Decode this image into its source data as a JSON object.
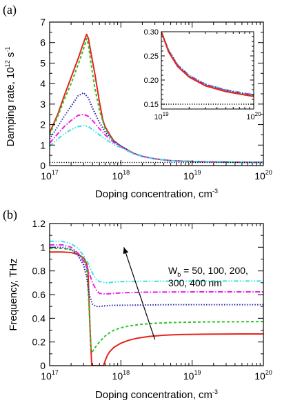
{
  "colors": {
    "wb50": "#e8221b",
    "wb100": "#29c42a",
    "wb200": "#1f1fb3",
    "wb300": "#e81ee8",
    "wb400": "#2ee3e3",
    "reference": "#000000",
    "axis": "#000000"
  },
  "chart_data": [
    {
      "panel_label": "(a)",
      "type": "line",
      "x_scale": "log",
      "xlabel": "Doping concentration, cm",
      "xlabel_exp": "-3",
      "ylabel": "Damping rate, 10",
      "ylabel_exp1": "12",
      "ylabel_unit": " s",
      "ylabel_exp2": "-1",
      "xlim": [
        1e+17,
        1e+20
      ],
      "ylim": [
        0,
        7
      ],
      "y_ticks": [
        "0",
        "1",
        "2",
        "3",
        "4",
        "5",
        "6",
        "7"
      ],
      "x_ticks": [
        {
          "base": "10",
          "exp": "17"
        },
        {
          "base": "10",
          "exp": "18"
        },
        {
          "base": "10",
          "exp": "19"
        },
        {
          "base": "10",
          "exp": "20"
        }
      ],
      "series": [
        {
          "key": "wb50",
          "style": "solid",
          "x": [
            1e+17,
            1.3e+17,
            1.6e+17,
            2e+17,
            2.5e+17,
            3e+17,
            3.3e+17,
            3.5e+17,
            3.8e+17,
            4.3e+17,
            5e+17,
            5.6e+17,
            6e+17,
            7e+17,
            8e+17,
            1e+18,
            1.5e+18,
            2e+18,
            3e+18,
            5e+18,
            1e+19,
            2e+19,
            5e+19,
            1e+20
          ],
          "y": [
            1.6,
            2.5,
            3.4,
            4.3,
            5.2,
            6.0,
            6.4,
            6.2,
            5.5,
            4.5,
            3.1,
            2.2,
            1.9,
            1.5,
            1.2,
            0.95,
            0.6,
            0.45,
            0.33,
            0.24,
            0.2,
            0.18,
            0.165,
            0.16
          ]
        },
        {
          "key": "wb100",
          "style": "dashed",
          "x": [
            1e+17,
            1.3e+17,
            1.6e+17,
            2e+17,
            2.5e+17,
            3e+17,
            3.3e+17,
            3.5e+17,
            3.8e+17,
            4.3e+17,
            5e+17,
            6e+17,
            7e+17,
            8e+17,
            1e+18,
            1.5e+18,
            2e+18,
            3e+18,
            5e+18,
            1e+19,
            2e+19,
            5e+19,
            1e+20
          ],
          "y": [
            1.5,
            2.4,
            3.2,
            4.0,
            4.9,
            5.7,
            6.2,
            5.9,
            5.0,
            3.8,
            2.7,
            1.8,
            1.45,
            1.2,
            0.95,
            0.6,
            0.45,
            0.33,
            0.24,
            0.2,
            0.18,
            0.165,
            0.16
          ]
        },
        {
          "key": "wb200",
          "style": "dotted",
          "x": [
            1e+17,
            1.3e+17,
            1.6e+17,
            2e+17,
            2.5e+17,
            3e+17,
            3.5e+17,
            4e+17,
            5e+17,
            6e+17,
            7e+17,
            8e+17,
            1e+18,
            1.5e+18,
            2e+18,
            3e+18,
            5e+18,
            1e+19,
            2e+19,
            5e+19,
            1e+20
          ],
          "y": [
            1.3,
            1.9,
            2.4,
            2.9,
            3.4,
            3.55,
            3.3,
            2.8,
            2.1,
            1.65,
            1.4,
            1.18,
            0.95,
            0.6,
            0.45,
            0.33,
            0.24,
            0.2,
            0.18,
            0.165,
            0.16
          ]
        },
        {
          "key": "wb300",
          "style": "dashdot",
          "x": [
            1e+17,
            1.3e+17,
            1.6e+17,
            2e+17,
            2.5e+17,
            3e+17,
            3.5e+17,
            4e+17,
            5e+17,
            6e+17,
            7e+17,
            8e+17,
            1e+18,
            1.5e+18,
            2e+18,
            3e+18,
            5e+18,
            1e+19,
            2e+19,
            5e+19,
            1e+20
          ],
          "y": [
            1.1,
            1.55,
            1.9,
            2.2,
            2.45,
            2.5,
            2.4,
            2.2,
            1.8,
            1.5,
            1.3,
            1.12,
            0.92,
            0.6,
            0.45,
            0.33,
            0.24,
            0.2,
            0.18,
            0.165,
            0.16
          ]
        },
        {
          "key": "wb400",
          "style": "dashdot2",
          "x": [
            1e+17,
            1.3e+17,
            1.6e+17,
            2e+17,
            2.5e+17,
            3e+17,
            3.5e+17,
            4e+17,
            5e+17,
            6e+17,
            7e+17,
            8e+17,
            1e+18,
            1.5e+18,
            2e+18,
            3e+18,
            5e+18,
            1e+19,
            2e+19,
            5e+19,
            1e+20
          ],
          "y": [
            0.95,
            1.3,
            1.55,
            1.75,
            1.9,
            1.95,
            1.9,
            1.75,
            1.5,
            1.3,
            1.15,
            1.02,
            0.88,
            0.58,
            0.44,
            0.33,
            0.24,
            0.2,
            0.18,
            0.165,
            0.16
          ]
        },
        {
          "key": "reference",
          "style": "fine-dotted",
          "x": [
            1e+17,
            1e+20
          ],
          "y": [
            0.15,
            0.15
          ]
        }
      ],
      "inset": {
        "xlim": [
          1e+19,
          1e+20
        ],
        "ylim": [
          0.14,
          0.3
        ],
        "y_ticks": [
          "0.15",
          "0.20",
          "0.25",
          "0.30"
        ],
        "x_ticks": [
          {
            "base": "10",
            "exp": "19"
          },
          {
            "base": "10",
            "exp": "20"
          }
        ],
        "series": [
          {
            "key": "wb400",
            "style": "dashdot2",
            "x": [
              1e+19,
              1.2e+19,
              1.5e+19,
              2e+19,
              3e+19,
              5e+19,
              7e+19,
              1e+20
            ],
            "y": [
              0.3,
              0.262,
              0.232,
              0.21,
              0.192,
              0.18,
              0.175,
              0.17
            ]
          },
          {
            "key": "wb300",
            "style": "dashdot",
            "x": [
              1e+19,
              1.2e+19,
              1.5e+19,
              2e+19,
              3e+19,
              5e+19,
              7e+19,
              1e+20
            ],
            "y": [
              0.3,
              0.261,
              0.231,
              0.209,
              0.191,
              0.179,
              0.174,
              0.169
            ]
          },
          {
            "key": "wb200",
            "style": "dotted",
            "x": [
              1e+19,
              1.2e+19,
              1.5e+19,
              2e+19,
              3e+19,
              5e+19,
              7e+19,
              1e+20
            ],
            "y": [
              0.3,
              0.26,
              0.23,
              0.208,
              0.19,
              0.178,
              0.173,
              0.168
            ]
          },
          {
            "key": "wb100",
            "style": "dashed",
            "x": [
              1e+19,
              1.2e+19,
              1.5e+19,
              2e+19,
              3e+19,
              5e+19,
              7e+19,
              1e+20
            ],
            "y": [
              0.3,
              0.259,
              0.229,
              0.207,
              0.189,
              0.177,
              0.172,
              0.167
            ]
          },
          {
            "key": "wb50",
            "style": "solid",
            "x": [
              1e+19,
              1.2e+19,
              1.5e+19,
              2e+19,
              3e+19,
              5e+19,
              7e+19,
              1e+20
            ],
            "y": [
              0.3,
              0.258,
              0.228,
              0.206,
              0.188,
              0.176,
              0.171,
              0.166
            ]
          },
          {
            "key": "reference",
            "style": "fine-dotted",
            "x": [
              1e+19,
              1e+20
            ],
            "y": [
              0.15,
              0.15
            ]
          }
        ]
      }
    },
    {
      "panel_label": "(b)",
      "type": "line",
      "x_scale": "log",
      "xlabel": "Doping concentration, cm",
      "xlabel_exp": "-3",
      "ylabel": "Frequency, THz",
      "xlim": [
        1e+17,
        1e+20
      ],
      "ylim": [
        0,
        1.2
      ],
      "y_ticks": [
        "0",
        "0.2",
        "0.4",
        "0.6",
        "0.8",
        "1",
        "1.2"
      ],
      "x_ticks": [
        {
          "base": "10",
          "exp": "17"
        },
        {
          "base": "10",
          "exp": "18"
        },
        {
          "base": "10",
          "exp": "19"
        },
        {
          "base": "10",
          "exp": "20"
        }
      ],
      "annotation": {
        "line1_prefix": "W",
        "line1_sub": "b",
        "line1_suffix": " = 50, 100, 200,",
        "line2": "300, 400 nm",
        "arrow_from": [
          3e+18,
          0.22
        ],
        "arrow_to": [
          1.1e+18,
          1.0
        ]
      },
      "series": [
        {
          "key": "wb50",
          "style": "solid",
          "x": [
            1e+17,
            1.5e+17,
            2e+17,
            2.5e+17,
            3e+17,
            3.3e+17,
            3.45e+17,
            3.7e+17,
            3.9e+17,
            4.2e+17,
            5e+17,
            5.6e+17,
            5.7e+17,
            6e+17,
            6.5e+17,
            7e+17,
            8e+17,
            1e+18,
            1.3e+18,
            1.7e+18,
            2.5e+18,
            4e+18,
            7e+18,
            1.5e+19,
            5e+19,
            1e+20
          ],
          "y": [
            0.96,
            0.96,
            0.955,
            0.94,
            0.91,
            0.86,
            0.81,
            0.3,
            0.0,
            0.0,
            0.0,
            0.0,
            0.0,
            0.04,
            0.09,
            0.12,
            0.155,
            0.19,
            0.215,
            0.232,
            0.247,
            0.257,
            0.263,
            0.266,
            0.268,
            0.268
          ]
        },
        {
          "key": "wb100",
          "style": "dashed",
          "x": [
            1e+17,
            1.5e+17,
            2e+17,
            2.5e+17,
            3e+17,
            3.3e+17,
            3.5e+17,
            3.7e+17,
            3.8e+17,
            4e+17,
            4.3e+17,
            5e+17,
            6e+17,
            7e+17,
            8e+17,
            1e+18,
            1.3e+18,
            2e+18,
            3e+18,
            5e+18,
            1e+19,
            2e+19,
            5e+19,
            1e+20
          ],
          "y": [
            0.99,
            0.99,
            0.98,
            0.95,
            0.9,
            0.83,
            0.6,
            0.3,
            0.14,
            0.12,
            0.15,
            0.2,
            0.25,
            0.28,
            0.3,
            0.32,
            0.335,
            0.35,
            0.358,
            0.364,
            0.368,
            0.37,
            0.371,
            0.372
          ]
        },
        {
          "key": "wb200",
          "style": "dotted",
          "x": [
            1e+17,
            1.5e+17,
            2e+17,
            2.5e+17,
            3e+17,
            3.3e+17,
            3.6e+17,
            4e+17,
            4.5e+17,
            5e+17,
            6e+17,
            8e+17,
            1e+18,
            2e+18,
            5e+18,
            1e+19,
            1e+20
          ],
          "y": [
            1.0,
            1.0,
            0.98,
            0.93,
            0.85,
            0.75,
            0.6,
            0.52,
            0.5,
            0.5,
            0.505,
            0.51,
            0.51,
            0.512,
            0.515,
            0.515,
            0.515
          ]
        },
        {
          "key": "wb300",
          "style": "dashdot",
          "x": [
            1e+17,
            1.5e+17,
            2e+17,
            2.5e+17,
            3e+17,
            3.5e+17,
            4e+17,
            4.5e+17,
            5e+17,
            6e+17,
            8e+17,
            1e+18,
            2e+18,
            5e+18,
            1e+19,
            1e+20
          ],
          "y": [
            1.02,
            1.02,
            1.0,
            0.95,
            0.88,
            0.8,
            0.7,
            0.64,
            0.61,
            0.605,
            0.61,
            0.615,
            0.62,
            0.622,
            0.623,
            0.623
          ]
        },
        {
          "key": "wb400",
          "style": "dashdot2",
          "x": [
            1e+17,
            1.5e+17,
            2e+17,
            2.5e+17,
            3e+17,
            3.5e+17,
            4e+17,
            4.5e+17,
            5e+17,
            6e+17,
            8e+17,
            1e+18,
            2e+18,
            5e+18,
            1e+19,
            1e+20
          ],
          "y": [
            1.05,
            1.05,
            1.03,
            0.99,
            0.93,
            0.86,
            0.78,
            0.73,
            0.71,
            0.7,
            0.705,
            0.71,
            0.712,
            0.713,
            0.714,
            0.714
          ]
        }
      ]
    }
  ]
}
